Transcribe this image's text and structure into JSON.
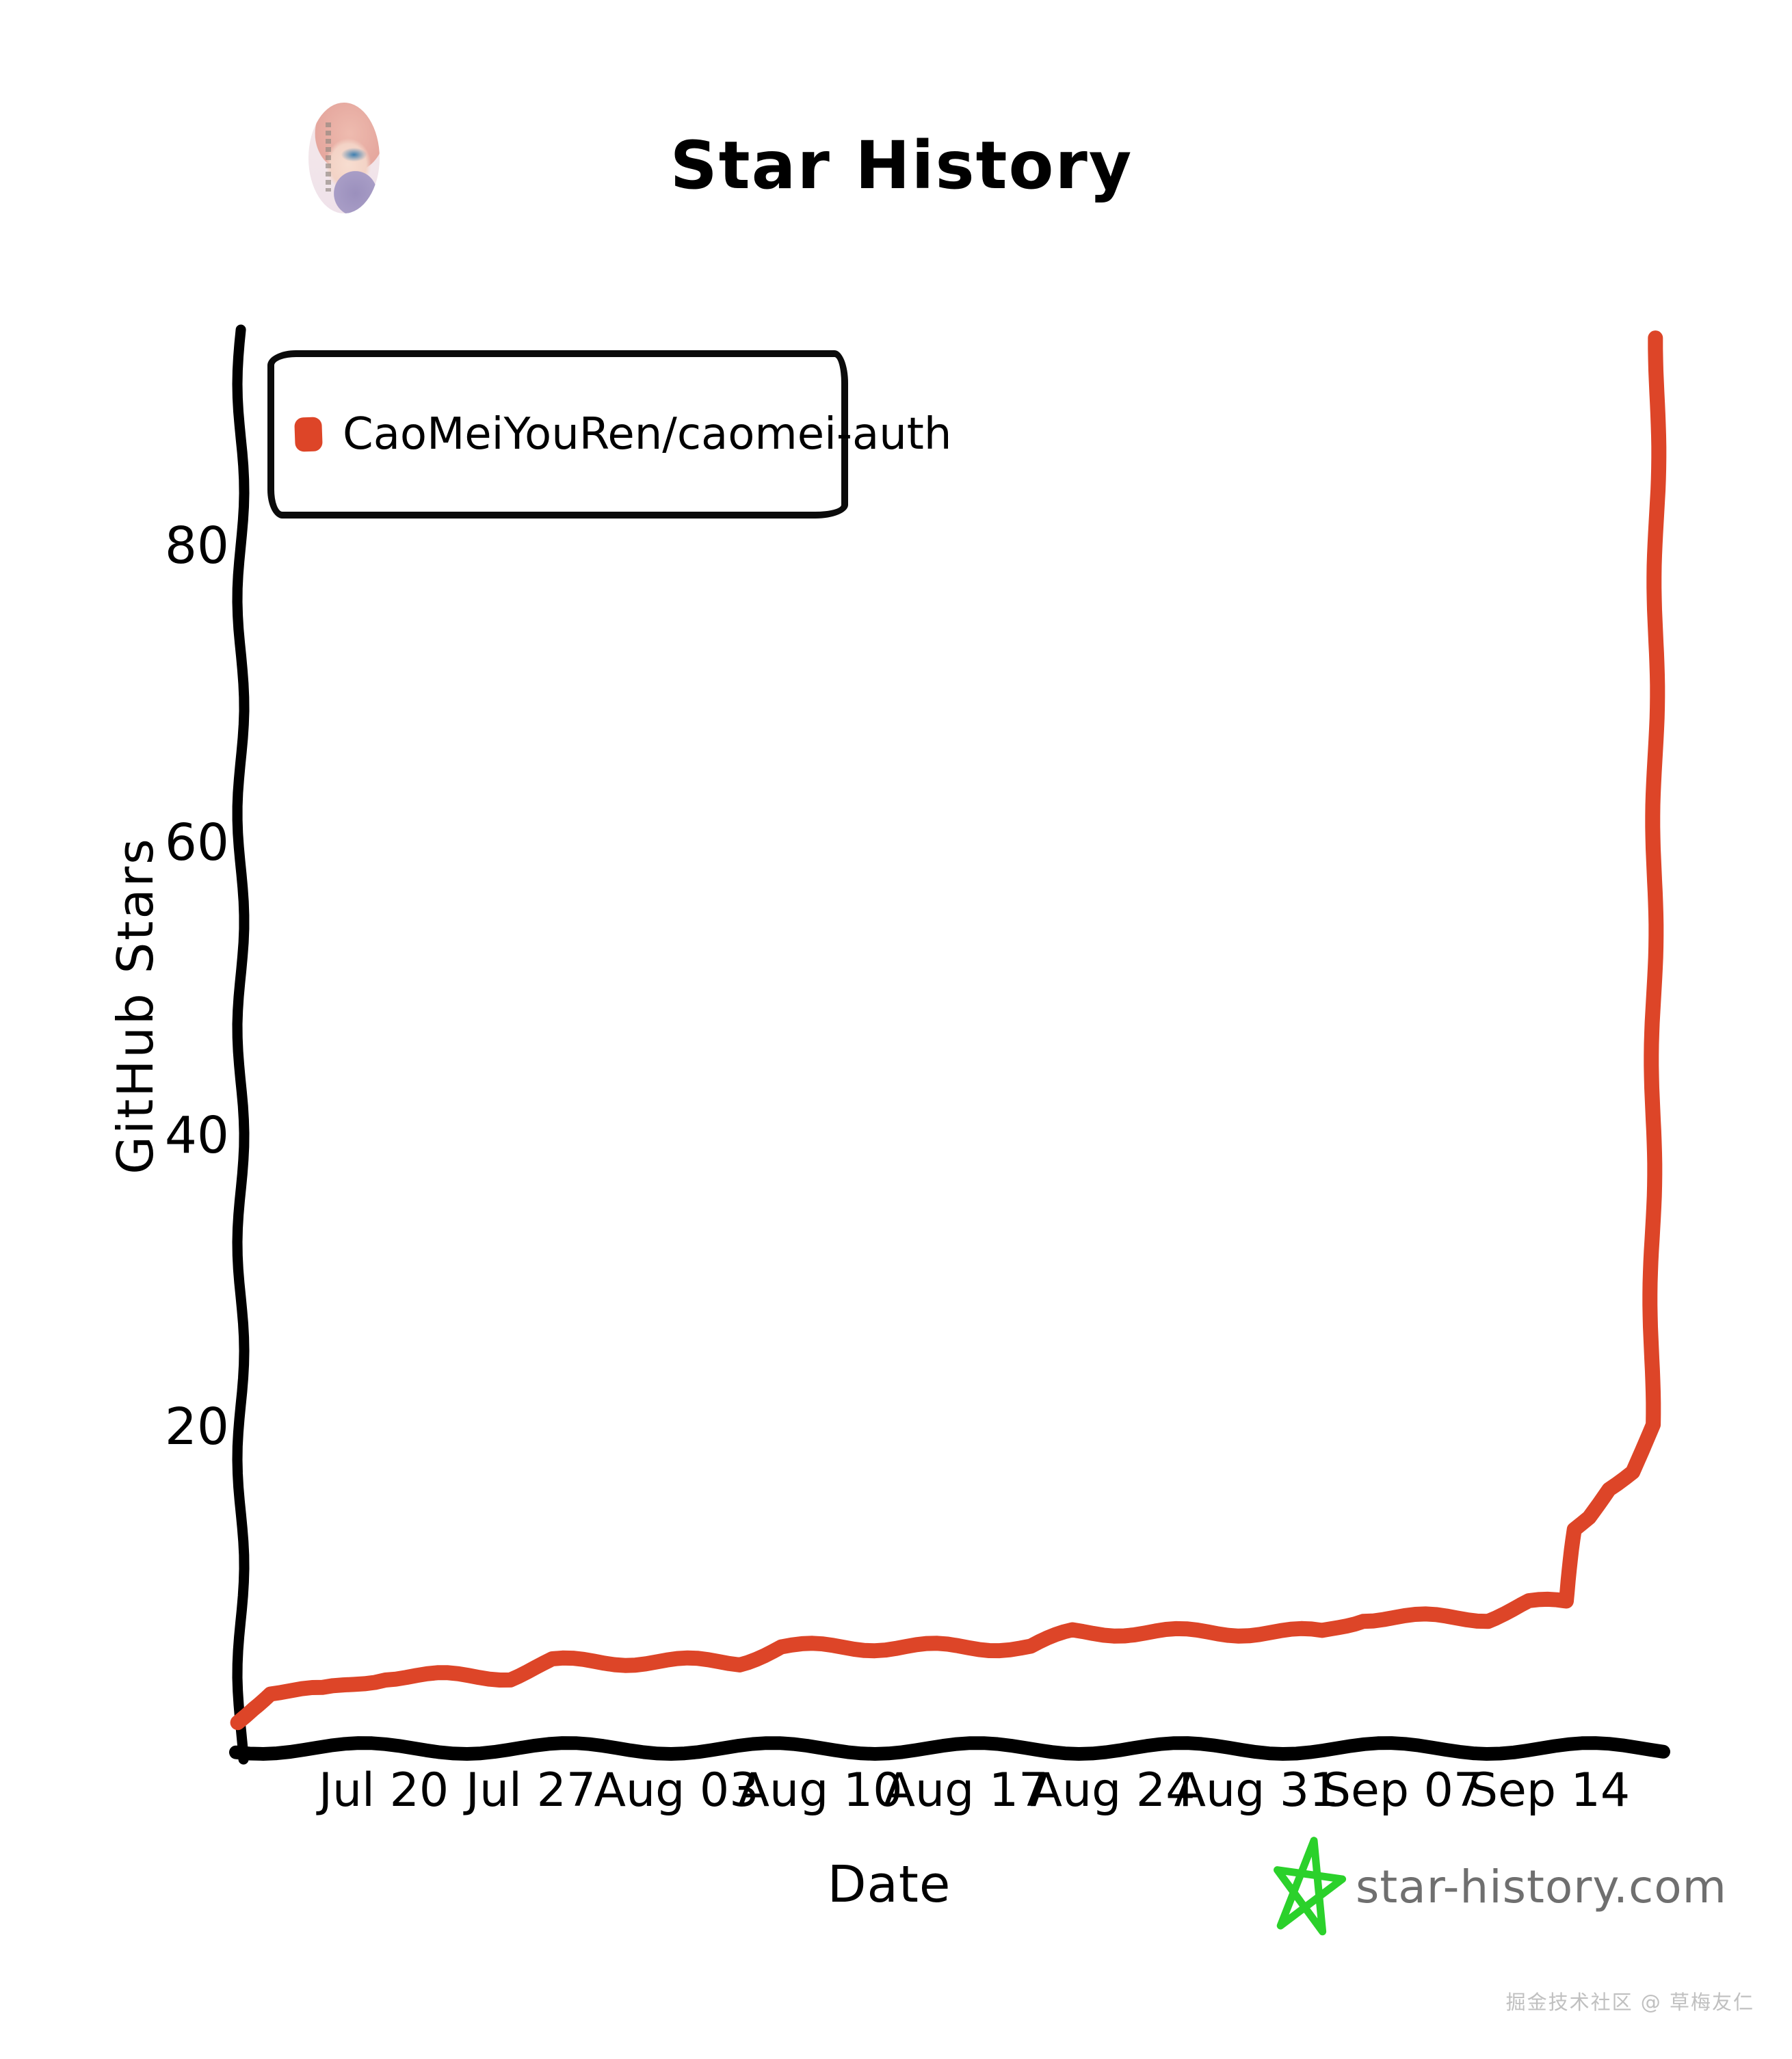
{
  "chart_data": {
    "type": "line",
    "title": "Star History",
    "xlabel": "Date",
    "ylabel": "GitHub Stars",
    "x_tick_labels": [
      "Jul 20",
      "Jul 27",
      "Aug 03",
      "Aug 10",
      "Aug 17",
      "Aug 24",
      "Aug 31",
      "Sep 07",
      "Sep 14"
    ],
    "y_ticks": [
      20,
      40,
      60,
      80
    ],
    "y_tick_labels": [
      "20",
      "40",
      "60",
      "80"
    ],
    "ylim": [
      0,
      95
    ],
    "grid": false,
    "legend_position": "top-left",
    "x_axis_note": "x values are day offsets; day 0 is approx Jul 13, ticks every 7 days",
    "series": [
      {
        "name": "CaoMeiYouRen/caomei-auth",
        "color": "#dd4528",
        "peak_stars": 94,
        "points_day_stars": [
          [
            0,
            0
          ],
          [
            0.7,
            1
          ],
          [
            1.5,
            2
          ],
          [
            4,
            2
          ],
          [
            7,
            3
          ],
          [
            10,
            3
          ],
          [
            13,
            3
          ],
          [
            15,
            4
          ],
          [
            18,
            4
          ],
          [
            21,
            4
          ],
          [
            24,
            4
          ],
          [
            26,
            5
          ],
          [
            29,
            5
          ],
          [
            32,
            5
          ],
          [
            35,
            5
          ],
          [
            38,
            5
          ],
          [
            40,
            6
          ],
          [
            43,
            6
          ],
          [
            46,
            6
          ],
          [
            49,
            6
          ],
          [
            52,
            6
          ],
          [
            54,
            7
          ],
          [
            57,
            7
          ],
          [
            60,
            7
          ],
          [
            62,
            8
          ],
          [
            63.8,
            8
          ],
          [
            64.3,
            13
          ],
          [
            65,
            14
          ],
          [
            65.9,
            16
          ],
          [
            67,
            17
          ],
          [
            67.6,
            19
          ],
          [
            67.9,
            20
          ],
          [
            68.2,
            94
          ]
        ]
      }
    ]
  },
  "footer": {
    "logo_text": "star-history.com",
    "logo_star_color": "#2bd12b",
    "watermark": "掘金技术社区 @ 草梅友仁"
  },
  "colors": {
    "series": "#dd4528",
    "axis": "#000000",
    "logo_text": "#6f6f6f",
    "watermark": "#c0c0c0"
  }
}
